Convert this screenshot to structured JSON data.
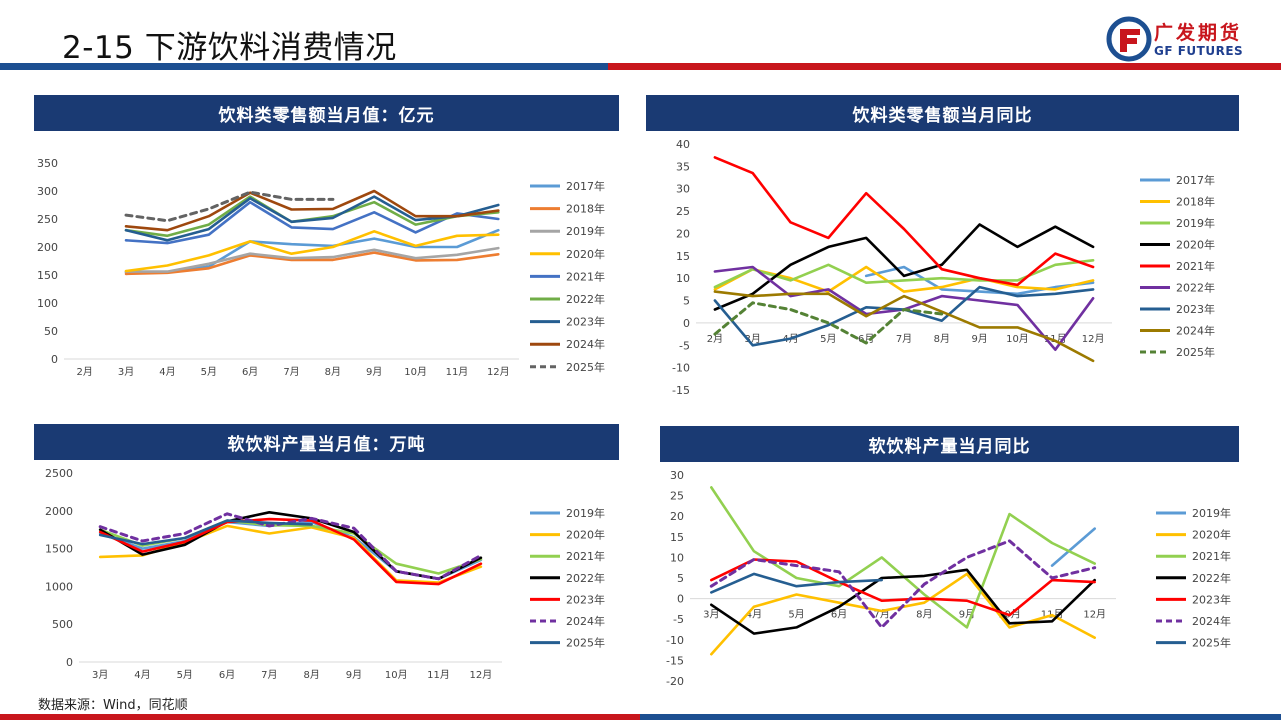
{
  "page": {
    "title": "2-15 下游饮料消费情况",
    "source": "数据来源：Wind，同花顺",
    "logo_cn": "广发期货",
    "logo_en": "GF FUTURES"
  },
  "colors": {
    "header": "#1a3a73",
    "brand_blue": "#1d4f91",
    "brand_red": "#c8161d"
  },
  "chart_data": [
    {
      "type": "line",
      "title": "饮料类零售额当月值：亿元",
      "categories": [
        "2月",
        "3月",
        "4月",
        "5月",
        "6月",
        "7月",
        "8月",
        "9月",
        "10月",
        "11月",
        "12月"
      ],
      "ylim": [
        0,
        350
      ],
      "yticks": [
        0,
        50,
        100,
        150,
        200,
        250,
        300,
        350
      ],
      "grid": false,
      "legend": "right",
      "series": [
        {
          "name": "2017年",
          "color": "#5b9bd5",
          "dash": false,
          "values": [
            null,
            155,
            155,
            165,
            210,
            205,
            202,
            215,
            200,
            200,
            230
          ]
        },
        {
          "name": "2018年",
          "color": "#ed7d31",
          "dash": false,
          "values": [
            null,
            152,
            154,
            162,
            185,
            177,
            177,
            190,
            176,
            177,
            187
          ]
        },
        {
          "name": "2019年",
          "color": "#a5a5a5",
          "dash": false,
          "values": [
            null,
            156,
            156,
            170,
            188,
            180,
            182,
            195,
            180,
            186,
            198
          ]
        },
        {
          "name": "2020年",
          "color": "#ffc000",
          "dash": false,
          "values": [
            null,
            157,
            167,
            185,
            210,
            188,
            200,
            228,
            202,
            220,
            222
          ]
        },
        {
          "name": "2021年",
          "color": "#4472c4",
          "dash": false,
          "values": [
            null,
            212,
            207,
            222,
            280,
            235,
            232,
            262,
            226,
            260,
            250
          ]
        },
        {
          "name": "2022年",
          "color": "#70ad47",
          "dash": false,
          "values": [
            null,
            230,
            220,
            240,
            290,
            245,
            255,
            280,
            240,
            255,
            262
          ]
        },
        {
          "name": "2023年",
          "color": "#255e91",
          "dash": false,
          "values": [
            null,
            230,
            212,
            232,
            287,
            245,
            252,
            290,
            248,
            255,
            275
          ]
        },
        {
          "name": "2024年",
          "color": "#9e480e",
          "dash": false,
          "values": [
            null,
            237,
            230,
            255,
            297,
            267,
            268,
            300,
            255,
            255,
            265
          ]
        },
        {
          "name": "2025年",
          "color": "#636363",
          "dash": true,
          "values": [
            null,
            257,
            247,
            268,
            298,
            285,
            285,
            null,
            null,
            null,
            null
          ]
        }
      ]
    },
    {
      "type": "line",
      "title": "饮料类零售额当月同比",
      "categories": [
        "2月",
        "3月",
        "4月",
        "5月",
        "6月",
        "7月",
        "8月",
        "9月",
        "10月",
        "11月",
        "12月"
      ],
      "ylim": [
        -15,
        40
      ],
      "yticks": [
        -15,
        -10,
        -5,
        0,
        5,
        10,
        15,
        20,
        25,
        30,
        35,
        40
      ],
      "grid": false,
      "legend": "right",
      "series": [
        {
          "name": "2017年",
          "color": "#5b9bd5",
          "dash": false,
          "values": [
            null,
            null,
            null,
            null,
            10.5,
            12.5,
            7.5,
            7,
            6.5,
            8,
            9
          ]
        },
        {
          "name": "2018年",
          "color": "#ffc000",
          "dash": false,
          "values": [
            7.5,
            12,
            10,
            7,
            12.5,
            7,
            8,
            10,
            8,
            7.5,
            9.5
          ]
        },
        {
          "name": "2019年",
          "color": "#92d050",
          "dash": false,
          "values": [
            8,
            12,
            9.5,
            13,
            9,
            9.5,
            10,
            9.5,
            9.5,
            13,
            14
          ]
        },
        {
          "name": "2020年",
          "color": "#000000",
          "dash": false,
          "values": [
            3,
            6.5,
            13,
            17,
            19,
            10.5,
            13,
            22,
            17,
            21.5,
            17
          ]
        },
        {
          "name": "2021年",
          "color": "#ff0000",
          "dash": false,
          "values": [
            37,
            33.5,
            22.5,
            19,
            29,
            21,
            12,
            10,
            8.5,
            15.5,
            12.5
          ]
        },
        {
          "name": "2022年",
          "color": "#7030a0",
          "dash": false,
          "values": [
            11.5,
            12.5,
            6,
            7.5,
            2,
            3,
            6,
            5,
            4,
            -6,
            5.5
          ]
        },
        {
          "name": "2023年",
          "color": "#255e91",
          "dash": false,
          "values": [
            5,
            -5,
            -3.5,
            -0.5,
            3.5,
            3,
            0.5,
            8,
            6,
            6.5,
            7.5
          ]
        },
        {
          "name": "2024年",
          "color": "#9c7a00",
          "dash": false,
          "values": [
            7,
            6,
            6.5,
            6.5,
            1.5,
            6,
            2.5,
            -1,
            -1,
            -4,
            -8.5
          ]
        },
        {
          "name": "2025年",
          "color": "#548235",
          "dash": true,
          "values": [
            -2.5,
            4.5,
            3,
            0,
            -4.5,
            3,
            2,
            null,
            null,
            null,
            null
          ]
        }
      ]
    },
    {
      "type": "line",
      "title": "软饮料产量当月值：万吨",
      "categories": [
        "3月",
        "4月",
        "5月",
        "6月",
        "7月",
        "8月",
        "9月",
        "10月",
        "11月",
        "12月"
      ],
      "ylim": [
        0,
        2500
      ],
      "yticks": [
        0,
        500,
        1000,
        1500,
        2000,
        2500
      ],
      "grid": false,
      "legend": "right",
      "series": [
        {
          "name": "2019年",
          "color": "#5b9bd5",
          "dash": false,
          "values": [
            1700,
            1500,
            1600,
            1850,
            1800,
            1850,
            1650,
            1200,
            1100,
            1350
          ]
        },
        {
          "name": "2020年",
          "color": "#ffc000",
          "dash": false,
          "values": [
            1390,
            1410,
            1580,
            1800,
            1700,
            1780,
            1640,
            1080,
            1050,
            1260
          ]
        },
        {
          "name": "2021年",
          "color": "#92d050",
          "dash": false,
          "values": [
            1750,
            1540,
            1640,
            1870,
            1810,
            1800,
            1700,
            1300,
            1170,
            1360
          ]
        },
        {
          "name": "2022年",
          "color": "#000000",
          "dash": false,
          "values": [
            1750,
            1420,
            1550,
            1860,
            1980,
            1900,
            1720,
            1200,
            1100,
            1380
          ]
        },
        {
          "name": "2023年",
          "color": "#ff0000",
          "dash": false,
          "values": [
            1720,
            1460,
            1590,
            1850,
            1890,
            1870,
            1620,
            1060,
            1030,
            1300
          ]
        },
        {
          "name": "2024年",
          "color": "#7030a0",
          "dash": true,
          "values": [
            1790,
            1600,
            1700,
            1960,
            1800,
            1900,
            1770,
            1200,
            1100,
            1410
          ]
        },
        {
          "name": "2025年",
          "color": "#255e91",
          "dash": false,
          "values": [
            1680,
            1560,
            1640,
            1870,
            1840,
            1820,
            null,
            null,
            null,
            null
          ]
        }
      ]
    },
    {
      "type": "line",
      "title": "软饮料产量当月同比",
      "categories": [
        "3月",
        "4月",
        "5月",
        "6月",
        "7月",
        "8月",
        "9月",
        "10月",
        "11月",
        "12月"
      ],
      "ylim": [
        -20,
        30
      ],
      "yticks": [
        -20,
        -15,
        -10,
        -5,
        0,
        5,
        10,
        15,
        20,
        25,
        30
      ],
      "grid": false,
      "legend": "right",
      "series": [
        {
          "name": "2019年",
          "color": "#5b9bd5",
          "dash": false,
          "values": [
            null,
            null,
            null,
            null,
            null,
            null,
            null,
            null,
            8,
            17
          ]
        },
        {
          "name": "2020年",
          "color": "#ffc000",
          "dash": false,
          "values": [
            -13.5,
            -2,
            1,
            -1,
            -3,
            -1,
            6,
            -7,
            -4,
            -9.5
          ]
        },
        {
          "name": "2021年",
          "color": "#92d050",
          "dash": false,
          "values": [
            27,
            11.5,
            5,
            3,
            10,
            1,
            -7,
            20.5,
            13.5,
            8.5
          ]
        },
        {
          "name": "2022年",
          "color": "#000000",
          "dash": false,
          "values": [
            -1.5,
            -8.5,
            -7,
            -2,
            5,
            5.5,
            7,
            -6,
            -5.5,
            4.5
          ]
        },
        {
          "name": "2023年",
          "color": "#ff0000",
          "dash": false,
          "values": [
            4.5,
            9.5,
            9,
            4,
            -0.5,
            0,
            -0.5,
            -4,
            4.5,
            4
          ]
        },
        {
          "name": "2024年",
          "color": "#7030a0",
          "dash": true,
          "values": [
            3,
            9.5,
            8,
            6.5,
            -7,
            3.5,
            10,
            14,
            5,
            7.5
          ]
        },
        {
          "name": "2025年",
          "color": "#255e91",
          "dash": false,
          "values": [
            1.5,
            6,
            3,
            4,
            4.5,
            null,
            null,
            null,
            null,
            null
          ]
        }
      ]
    }
  ]
}
